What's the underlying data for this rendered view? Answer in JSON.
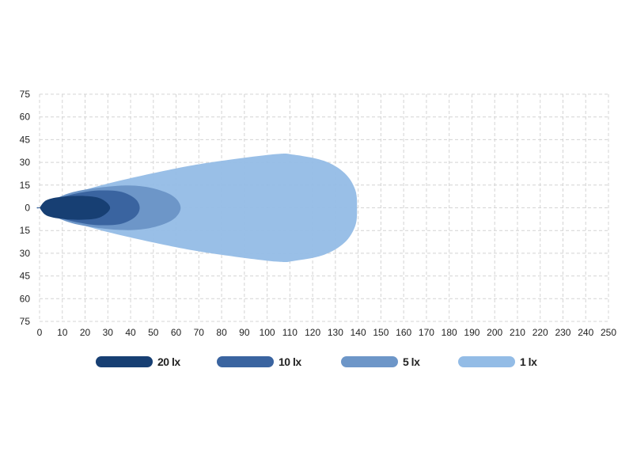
{
  "chart_data": {
    "type": "area",
    "xlim": [
      0,
      250
    ],
    "ylim": [
      -75,
      75
    ],
    "x_ticks": [
      "0",
      "10",
      "20",
      "30",
      "40",
      "50",
      "60",
      "70",
      "80",
      "90",
      "100",
      "110",
      "120",
      "130",
      "140",
      "150",
      "160",
      "170",
      "180",
      "190",
      "200",
      "210",
      "220",
      "230",
      "240",
      "250"
    ],
    "y_ticks": [
      "75",
      "60",
      "45",
      "30",
      "15",
      "0",
      "15",
      "30",
      "45",
      "60",
      "75"
    ],
    "grid": true,
    "legend_placement": "bottom",
    "series": [
      {
        "name": "1 lx",
        "color": "#93bce6",
        "outline_upper": [
          [
            0,
            0
          ],
          [
            10,
            7
          ],
          [
            30,
            16
          ],
          [
            60,
            26
          ],
          [
            80,
            31
          ],
          [
            104,
            35.5
          ],
          [
            112,
            35
          ],
          [
            125,
            31
          ],
          [
            134,
            23
          ],
          [
            138.7,
            12
          ],
          [
            139.5,
            0
          ]
        ]
      },
      {
        "name": "5 lx",
        "color": "#6d96c8",
        "outline_upper": [
          [
            0,
            0
          ],
          [
            10,
            8
          ],
          [
            20,
            12
          ],
          [
            35,
            14.6
          ],
          [
            46,
            14
          ],
          [
            55,
            10.5
          ],
          [
            60,
            6
          ],
          [
            62,
            0
          ]
        ]
      },
      {
        "name": "10 lx",
        "color": "#3a64a0",
        "outline_upper": [
          [
            0,
            0
          ],
          [
            10,
            7
          ],
          [
            20,
            10.5
          ],
          [
            28,
            11.5
          ],
          [
            36,
            10.5
          ],
          [
            42,
            6
          ],
          [
            44,
            0
          ]
        ]
      },
      {
        "name": "20 lx",
        "color": "#173f73",
        "outline_upper": [
          [
            0,
            0
          ],
          [
            3,
            5
          ],
          [
            10,
            7.3
          ],
          [
            20,
            7.8
          ],
          [
            27,
            6
          ],
          [
            31,
            0
          ]
        ]
      }
    ]
  }
}
